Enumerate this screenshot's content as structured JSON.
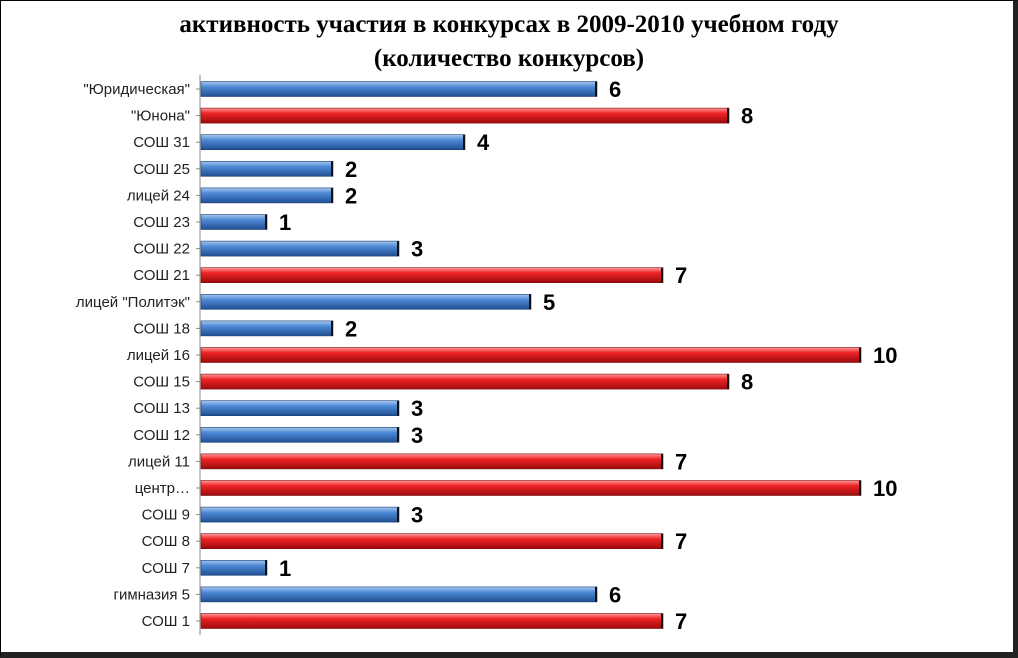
{
  "chart_data": {
    "type": "bar",
    "orientation": "horizontal",
    "title_line1": "активность участия в конкурсах в 2009-2010 учебном году",
    "title_line2": "(количество конкурсов)",
    "xlabel": "",
    "ylabel": "",
    "xlim": [
      0,
      10
    ],
    "grid": false,
    "legend": "none",
    "categories": [
      "\"Юридическая\"",
      "\"Юнона\"",
      "СОШ 31",
      "СОШ 25",
      "лицей 24",
      "СОШ 23",
      "СОШ 22",
      "СОШ 21",
      "лицей \"Политэк\"",
      "СОШ 18",
      "лицей 16",
      "СОШ 15",
      "СОШ 13",
      "СОШ 12",
      "лицей 11",
      "центр…",
      "СОШ 9",
      "СОШ 8",
      "СОШ 7",
      "гимназия 5",
      "СОШ 1"
    ],
    "values": [
      6,
      8,
      4,
      2,
      2,
      1,
      3,
      7,
      5,
      2,
      10,
      8,
      3,
      3,
      7,
      10,
      3,
      7,
      1,
      6,
      7
    ],
    "colors": [
      "#3d7cc9",
      "#e8181c",
      "#3d7cc9",
      "#3d7cc9",
      "#3d7cc9",
      "#3d7cc9",
      "#3d7cc9",
      "#e8181c",
      "#3d7cc9",
      "#3d7cc9",
      "#e8181c",
      "#e8181c",
      "#3d7cc9",
      "#3d7cc9",
      "#e8181c",
      "#e8181c",
      "#3d7cc9",
      "#e8181c",
      "#3d7cc9",
      "#3d7cc9",
      "#e8181c"
    ]
  }
}
